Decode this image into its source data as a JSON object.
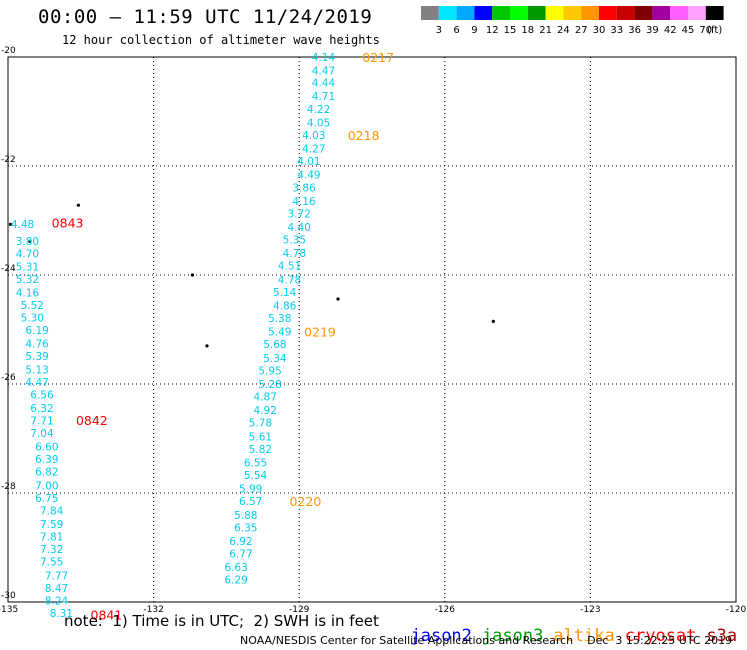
{
  "header": {
    "title": "00:00 — 11:59 UTC 11/24/2019",
    "subtitle": "12 hour collection of altimeter wave heights"
  },
  "colorbar": {
    "ticks": [
      "3",
      "6",
      "9",
      "12",
      "15",
      "18",
      "21",
      "24",
      "27",
      "30",
      "33",
      "36",
      "39",
      "42",
      "45",
      "70",
      "(ft)"
    ],
    "colors": [
      "#808080",
      "#00e5ff",
      "#00a8ff",
      "#0000ff",
      "#00c800",
      "#00ff00",
      "#009600",
      "#ffff00",
      "#ffc800",
      "#ff9600",
      "#ff0000",
      "#c80000",
      "#800000",
      "#a000a0",
      "#ff60ff",
      "#ffa0ff",
      "#000000"
    ]
  },
  "footer": {
    "note": "note:  1) Time is in UTC;  2) SWH is in feet",
    "credit": "NOAA/NESDIS Center for Satellite Applications and Research    Dec  3 15:22:25 UTC 2019",
    "legend": [
      {
        "label": "jason2",
        "color": "#0000ff"
      },
      {
        "label": "jason3",
        "color": "#00a000"
      },
      {
        "label": "altika",
        "color": "#ff9600"
      },
      {
        "label": "cryosat",
        "color": "#ff0000"
      },
      {
        "label": "s3a",
        "color": "#b00000"
      }
    ]
  },
  "chart_data": {
    "type": "scatter",
    "xlim": [
      -135,
      -120
    ],
    "ylim": [
      -30,
      -20
    ],
    "x_ticks": [
      "-135",
      "-132",
      "-129",
      "-126",
      "-123",
      "-120"
    ],
    "y_ticks": [
      "-20",
      "-22",
      "-24",
      "-26",
      "-28",
      "-30"
    ],
    "grid": true,
    "value_color": "#00ccee",
    "time_color_track_a": "#ff0000",
    "time_color_track_b": "#ff9600",
    "tracks": [
      {
        "name": "track-west",
        "points": [
          {
            "x": -134.7,
            "y": -23.06,
            "v": "4.48"
          },
          {
            "x": -134.6,
            "y": -23.38,
            "v": "3.80"
          },
          {
            "x": -134.6,
            "y": -23.61,
            "v": "4.70"
          },
          {
            "x": -134.6,
            "y": -23.84,
            "v": "5.31"
          },
          {
            "x": -134.6,
            "y": -24.07,
            "v": "5.32"
          },
          {
            "x": -134.6,
            "y": -24.32,
            "v": "4.16"
          },
          {
            "x": -134.5,
            "y": -24.55,
            "v": "5.52"
          },
          {
            "x": -134.5,
            "y": -24.78,
            "v": "5.30"
          },
          {
            "x": -134.4,
            "y": -25.01,
            "v": "6.19"
          },
          {
            "x": -134.4,
            "y": -25.26,
            "v": "4.76"
          },
          {
            "x": -134.4,
            "y": -25.49,
            "v": "5.39"
          },
          {
            "x": -134.4,
            "y": -25.73,
            "v": "5.13"
          },
          {
            "x": -134.4,
            "y": -25.96,
            "v": "4.47"
          },
          {
            "x": -134.3,
            "y": -26.19,
            "v": "6.56"
          },
          {
            "x": -134.3,
            "y": -26.44,
            "v": "6.32"
          },
          {
            "x": -134.3,
            "y": -26.67,
            "v": "7.71"
          },
          {
            "x": -134.3,
            "y": -26.9,
            "v": "7.04"
          },
          {
            "x": -134.2,
            "y": -27.15,
            "v": "6.60"
          },
          {
            "x": -134.2,
            "y": -27.38,
            "v": "6.39"
          },
          {
            "x": -134.2,
            "y": -27.61,
            "v": "6.82"
          },
          {
            "x": -134.2,
            "y": -27.86,
            "v": "7.00"
          },
          {
            "x": -134.2,
            "y": -28.09,
            "v": "6.75"
          },
          {
            "x": -134.1,
            "y": -28.32,
            "v": "7.84"
          },
          {
            "x": -134.1,
            "y": -28.57,
            "v": "7.59"
          },
          {
            "x": -134.1,
            "y": -28.8,
            "v": "7.81"
          },
          {
            "x": -134.1,
            "y": -29.03,
            "v": "7.32"
          },
          {
            "x": -134.1,
            "y": -29.26,
            "v": "7.55"
          },
          {
            "x": -134.0,
            "y": -29.51,
            "v": "7.77"
          },
          {
            "x": -134.0,
            "y": -29.74,
            "v": "8.47"
          },
          {
            "x": -134.0,
            "y": -29.97,
            "v": "8.24"
          },
          {
            "x": -133.9,
            "y": -30.2,
            "v": "8.31"
          }
        ],
        "time_labels": [
          {
            "x": -134.1,
            "y": -23.04,
            "t": "0843"
          },
          {
            "x": -133.6,
            "y": -26.66,
            "t": "0842"
          },
          {
            "x": -133.3,
            "y": -30.23,
            "t": "0841"
          }
        ]
      },
      {
        "name": "track-east",
        "points": [
          {
            "x": -128.5,
            "y": -20.0,
            "v": "4.14"
          },
          {
            "x": -128.5,
            "y": -20.25,
            "v": "4.47"
          },
          {
            "x": -128.5,
            "y": -20.47,
            "v": "4.44"
          },
          {
            "x": -128.5,
            "y": -20.72,
            "v": "4.71"
          },
          {
            "x": -128.6,
            "y": -20.95,
            "v": "4.22"
          },
          {
            "x": -128.6,
            "y": -21.2,
            "v": "4.05"
          },
          {
            "x": -128.7,
            "y": -21.43,
            "v": "4.03"
          },
          {
            "x": -128.7,
            "y": -21.68,
            "v": "4.27"
          },
          {
            "x": -128.8,
            "y": -21.91,
            "v": "4.01"
          },
          {
            "x": -128.8,
            "y": -22.16,
            "v": "4.49"
          },
          {
            "x": -128.9,
            "y": -22.39,
            "v": "3.86"
          },
          {
            "x": -128.9,
            "y": -22.64,
            "v": "4.16"
          },
          {
            "x": -129.0,
            "y": -22.87,
            "v": "3.72"
          },
          {
            "x": -129.0,
            "y": -23.12,
            "v": "4.40"
          },
          {
            "x": -129.1,
            "y": -23.35,
            "v": "5.35"
          },
          {
            "x": -129.1,
            "y": -23.6,
            "v": "4.78"
          },
          {
            "x": -129.2,
            "y": -23.83,
            "v": "4.51"
          },
          {
            "x": -129.2,
            "y": -24.08,
            "v": "4.78"
          },
          {
            "x": -129.3,
            "y": -24.31,
            "v": "5.14"
          },
          {
            "x": -129.3,
            "y": -24.56,
            "v": "4.86"
          },
          {
            "x": -129.4,
            "y": -24.79,
            "v": "5.38"
          },
          {
            "x": -129.4,
            "y": -25.04,
            "v": "5.49"
          },
          {
            "x": -129.5,
            "y": -25.27,
            "v": "5.68"
          },
          {
            "x": -129.5,
            "y": -25.52,
            "v": "5.34"
          },
          {
            "x": -129.6,
            "y": -25.75,
            "v": "5.95"
          },
          {
            "x": -129.6,
            "y": -26.0,
            "v": "5.28"
          },
          {
            "x": -129.7,
            "y": -26.23,
            "v": "4.87"
          },
          {
            "x": -129.7,
            "y": -26.48,
            "v": "4.92"
          },
          {
            "x": -129.8,
            "y": -26.71,
            "v": "5.78"
          },
          {
            "x": -129.8,
            "y": -26.96,
            "v": "5.61"
          },
          {
            "x": -129.8,
            "y": -27.19,
            "v": "5.82"
          },
          {
            "x": -129.9,
            "y": -27.44,
            "v": "6.55"
          },
          {
            "x": -129.9,
            "y": -27.67,
            "v": "5.54"
          },
          {
            "x": -130.0,
            "y": -27.92,
            "v": "5.99"
          },
          {
            "x": -130.0,
            "y": -28.15,
            "v": "6.57"
          },
          {
            "x": -130.1,
            "y": -28.4,
            "v": "5.88"
          },
          {
            "x": -130.1,
            "y": -28.63,
            "v": "6.35"
          },
          {
            "x": -130.2,
            "y": -28.88,
            "v": "6.92"
          },
          {
            "x": -130.2,
            "y": -29.11,
            "v": "6.77"
          },
          {
            "x": -130.3,
            "y": -29.36,
            "v": "6.63"
          },
          {
            "x": -130.3,
            "y": -29.59,
            "v": "6.29"
          }
        ],
        "time_labels": [
          {
            "x": -127.7,
            "y": -20.0,
            "t": "0217"
          },
          {
            "x": -128.0,
            "y": -21.43,
            "t": "0218"
          },
          {
            "x": -128.9,
            "y": -25.04,
            "t": "0219"
          },
          {
            "x": -129.2,
            "y": -28.15,
            "t": "0220"
          }
        ]
      }
    ],
    "islands": [
      {
        "x": -133.55,
        "y": -22.72
      },
      {
        "x": -134.95,
        "y": -23.07
      },
      {
        "x": -134.55,
        "y": -23.38
      },
      {
        "x": -131.2,
        "y": -24.0
      },
      {
        "x": -128.2,
        "y": -24.44
      },
      {
        "x": -125.0,
        "y": -24.85
      },
      {
        "x": -130.9,
        "y": -25.3
      }
    ]
  }
}
